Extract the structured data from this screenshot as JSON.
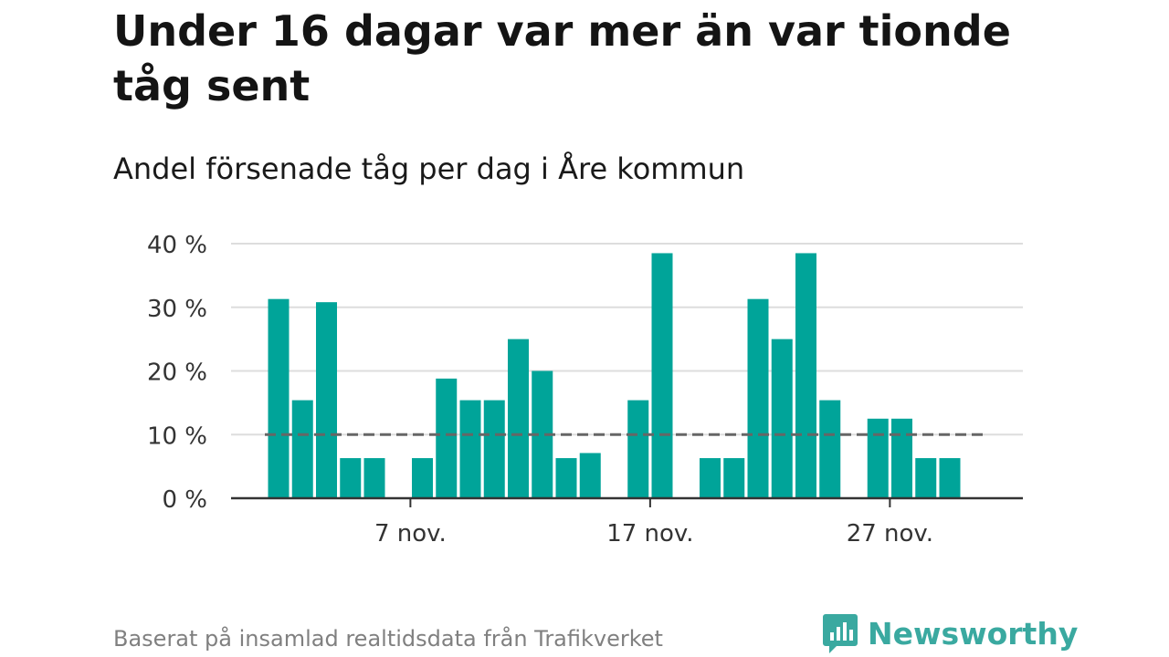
{
  "title": "Under 16 dagar var mer än var tionde tåg sent",
  "subtitle": "Andel försenade tåg per dag i Åre kommun",
  "footer": "Baserat på insamlad realtidsdata från Trafikverket",
  "brand": {
    "name": "Newsworthy",
    "icon": "newsworthy-logo-icon"
  },
  "colors": {
    "bar": "#00a499",
    "reference_line": "#666666",
    "grid": "#dddddd",
    "brand": "#3aa9a0"
  },
  "chart_data": {
    "type": "bar",
    "x": [
      1,
      2,
      3,
      4,
      5,
      6,
      7,
      8,
      9,
      10,
      11,
      12,
      13,
      14,
      15,
      16,
      17,
      18,
      19,
      20,
      21,
      22,
      23,
      24,
      25,
      26,
      27,
      28,
      29,
      30
    ],
    "values": [
      31.3,
      15.4,
      30.8,
      6.3,
      6.3,
      null,
      6.3,
      18.8,
      15.4,
      15.4,
      25.0,
      20.0,
      6.3,
      7.1,
      null,
      15.4,
      38.5,
      null,
      6.3,
      6.3,
      31.3,
      25.0,
      38.5,
      15.4,
      null,
      12.5,
      12.5,
      6.3,
      6.3,
      null
    ],
    "x_unit": "nov.",
    "x_ticks": [
      7,
      17,
      27
    ],
    "x_tick_labels": [
      "7 nov.",
      "17 nov.",
      "27 nov."
    ],
    "y_ticks": [
      0,
      10,
      20,
      30,
      40
    ],
    "y_tick_labels": [
      "0 %",
      "10 %",
      "20 %",
      "30 %",
      "40 %"
    ],
    "ylim": [
      0,
      40
    ],
    "reference_line": {
      "y": 10,
      "style": "dashed"
    },
    "grid": true,
    "xlabel": "",
    "ylabel": ""
  }
}
